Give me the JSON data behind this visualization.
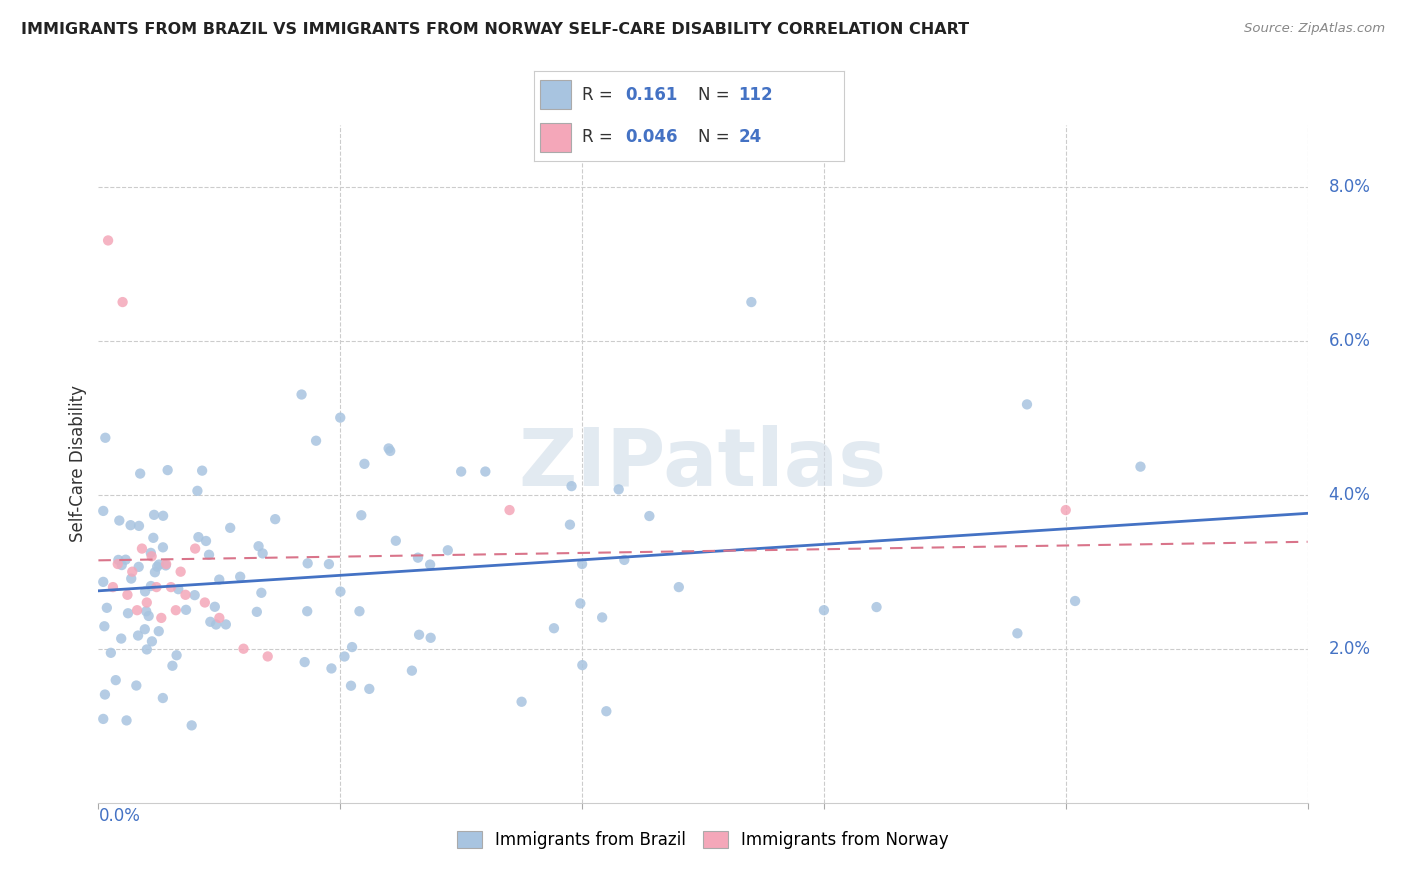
{
  "title": "IMMIGRANTS FROM BRAZIL VS IMMIGRANTS FROM NORWAY SELF-CARE DISABILITY CORRELATION CHART",
  "source": "Source: ZipAtlas.com",
  "ylabel": "Self-Care Disability",
  "ytick_vals": [
    0.02,
    0.04,
    0.06,
    0.08
  ],
  "ytick_labels": [
    "2.0%",
    "4.0%",
    "6.0%",
    "8.0%"
  ],
  "xlim": [
    0.0,
    0.25
  ],
  "ylim": [
    0.0,
    0.088
  ],
  "brazil_R": "0.161",
  "brazil_N": "112",
  "norway_R": "0.046",
  "norway_N": "24",
  "brazil_color": "#a8c4e0",
  "norway_color": "#f4a7b9",
  "brazil_line_color": "#4472c4",
  "norway_line_color": "#d9748a",
  "legend_label_brazil": "Immigrants from Brazil",
  "legend_label_norway": "Immigrants from Norway",
  "watermark": "ZIPatlas",
  "title_color": "#222222",
  "source_color": "#888888",
  "tick_color": "#4472c4",
  "grid_color": "#cccccc"
}
